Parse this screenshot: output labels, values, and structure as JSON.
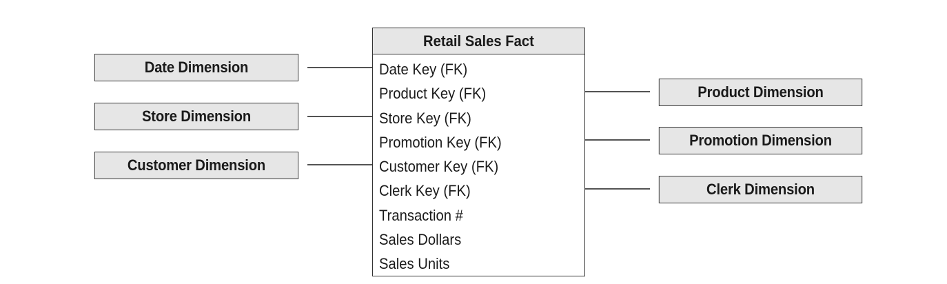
{
  "fact_table": {
    "title": "Retail Sales Fact",
    "attributes": [
      "Date Key (FK)",
      "Product Key (FK)",
      "Store Key (FK)",
      "Promotion Key (FK)",
      "Customer Key (FK)",
      "Clerk Key (FK)",
      "Transaction #",
      "Sales Dollars",
      "Sales Units"
    ]
  },
  "dimensions": {
    "left": [
      "Date Dimension",
      "Store Dimension",
      "Customer Dimension"
    ],
    "right": [
      "Product Dimension",
      "Promotion Dimension",
      "Clerk Dimension"
    ]
  },
  "colors": {
    "box_fill": "#e6e6e6",
    "border": "#333333",
    "text": "#1a1a1a",
    "background": "#ffffff"
  }
}
